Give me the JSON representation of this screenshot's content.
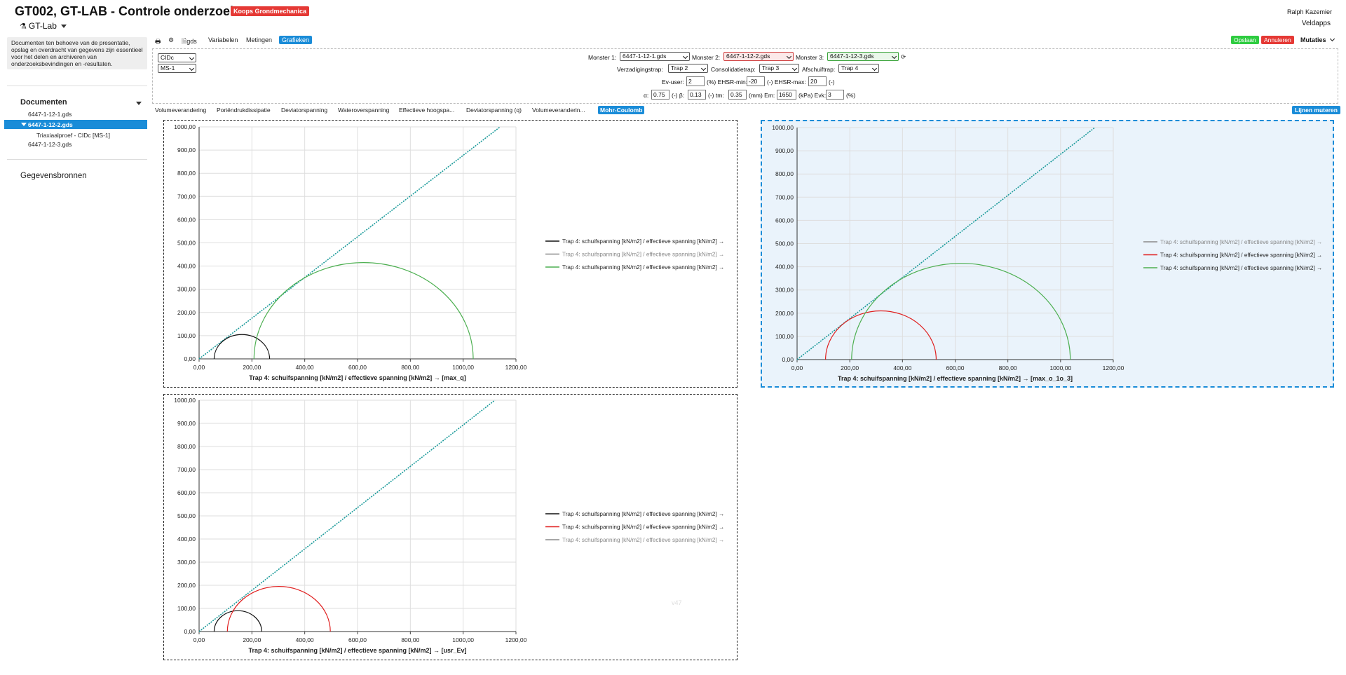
{
  "header": {
    "title": "GT002, GT-LAB - Controle onderzoek",
    "badge": "Koops Grondmechanica",
    "app_name": "GT-Lab",
    "user": "Ralph Kazemier",
    "org": "Veldapps"
  },
  "sidebar": {
    "info": "Documenten ten behoeve van de presentatie, opslag en overdracht van gegevens zijn essentieel voor het delen en archiveren van onderzoeksbevindingen en -resultaten.",
    "documents_heading": "Documenten",
    "items": [
      {
        "label": "6447-1-12-1.gds"
      },
      {
        "label": "6447-1-12-2.gds"
      },
      {
        "label": "Triaxiaalproef - CIDc [MS-1]"
      },
      {
        "label": "6447-1-12-3.gds"
      }
    ],
    "sources_heading": "Gegevensbronnen"
  },
  "toolbar": {
    "gds": "gds",
    "variabelen": "Variabelen",
    "metingen": "Metingen",
    "grafieken": "Grafieken",
    "opslaan": "Opslaan",
    "annuleren": "Annuleren",
    "mutaties": "Mutaties"
  },
  "filters": {
    "type": "CIDc",
    "ms": "MS-1",
    "monster1_label": "Monster 1:",
    "monster1": "6447-1-12-1.gds",
    "monster2_label": "Monster 2:",
    "monster2": "6447-1-12-2.gds",
    "monster3_label": "Monster 3:",
    "monster3": "6447-1-12-3.gds",
    "verz_label": "Verzadigingstrap:",
    "verz": "Trap 2",
    "cons_label": "Consolidatietrap:",
    "cons": "Trap 3",
    "afsch_label": "Afschuiftrap:",
    "afsch": "Trap 4",
    "ev_label": "Ev-user:",
    "ev": "2",
    "ev_unit": "(%) EHSR-min:",
    "ehsr_min": "-20",
    "ehsr_min_unit": "(-) EHSR-max:",
    "ehsr_max": "20",
    "ehsr_max_unit": "(-)",
    "alpha_label": "α:",
    "alpha": "0.75",
    "alpha_unit": "(-) β:",
    "beta": "0.13",
    "beta_unit": "(-) tm:",
    "tm": "0.35",
    "tm_unit": "(mm) Em:",
    "em": "1650",
    "em_unit": "(kPa) Evk:",
    "evk": "3",
    "evk_unit": "(%)"
  },
  "tabs": [
    {
      "label": "Volumeverandering"
    },
    {
      "label": "Poriëndrukdissipatie"
    },
    {
      "label": "Deviatorspanning"
    },
    {
      "label": "Wateroverspanning"
    },
    {
      "label": "Effectieve hoogspa..."
    },
    {
      "label": "Deviatorspanning (q)"
    },
    {
      "label": "Volumeveranderin..."
    },
    {
      "label": "Mohr-Coulomb"
    }
  ],
  "lijnen_muteren": "Lijnen muteren",
  "watermark": "v47",
  "colors": {
    "accent": "#1a8cd8",
    "black": "#111111",
    "gray": "#8a8a8a",
    "red": "#e02020",
    "green": "#4caf50",
    "envelope": "#1a9a9a"
  },
  "chart_data": [
    {
      "type": "line",
      "title": "Trap 4: schuifspanning [kN/m2] / effectieve spanning [kN/m2] → [max_q]",
      "xlim": [
        0,
        1200
      ],
      "ylim": [
        0,
        1000
      ],
      "xticks": [
        "0,00",
        "200,00",
        "400,00",
        "600,00",
        "800,00",
        "1000,00",
        "1200,00"
      ],
      "yticks": [
        "0,00",
        "100,00",
        "200,00",
        "300,00",
        "400,00",
        "500,00",
        "600,00",
        "700,00",
        "800,00",
        "900,00",
        "1000,00"
      ],
      "envelope": {
        "x": [
          0,
          1140
        ],
        "y": [
          0,
          1000
        ]
      },
      "series": [
        {
          "name": "Trap 4: schuifspanning [kN/m2] / effectieve spanning [kN/m2] →",
          "color": "black",
          "center": 162,
          "radius": 105
        },
        {
          "name": "Trap 4: schuifspanning [kN/m2] / effectieve spanning [kN/m2] →",
          "color": "gray",
          "center": null,
          "radius": null
        },
        {
          "name": "Trap 4: schuifspanning [kN/m2] / effectieve spanning [kN/m2] →",
          "color": "green",
          "center": 623,
          "radius": 415
        }
      ],
      "legend_position": "right"
    },
    {
      "type": "line",
      "title": "Trap 4: schuifspanning [kN/m2] / effectieve spanning [kN/m2] → [max_o_1o_3]",
      "xlim": [
        0,
        1200
      ],
      "ylim": [
        0,
        1000
      ],
      "xticks": [
        "0,00",
        "200,00",
        "400,00",
        "600,00",
        "800,00",
        "1000,00",
        "1200,00"
      ],
      "yticks": [
        "0,00",
        "100,00",
        "200,00",
        "300,00",
        "400,00",
        "500,00",
        "600,00",
        "700,00",
        "800,00",
        "900,00",
        "1000,00"
      ],
      "envelope": {
        "x": [
          0,
          1130
        ],
        "y": [
          0,
          1000
        ]
      },
      "series": [
        {
          "name": "Trap 4: schuifspanning [kN/m2] / effectieve spanning [kN/m2] →",
          "color": "gray",
          "center": null,
          "radius": null
        },
        {
          "name": "Trap 4: schuifspanning [kN/m2] / effectieve spanning [kN/m2] →",
          "color": "red",
          "center": 318,
          "radius": 210
        },
        {
          "name": "Trap 4: schuifspanning [kN/m2] / effectieve spanning [kN/m2] →",
          "color": "green",
          "center": 622,
          "radius": 415
        }
      ],
      "legend_position": "right"
    },
    {
      "type": "line",
      "title": "Trap 4: schuifspanning [kN/m2] / effectieve spanning [kN/m2] → [usr_Ev]",
      "xlim": [
        0,
        1200
      ],
      "ylim": [
        0,
        1000
      ],
      "xticks": [
        "0,00",
        "200,00",
        "400,00",
        "600,00",
        "800,00",
        "1000,00",
        "1200,00"
      ],
      "yticks": [
        "0,00",
        "100,00",
        "200,00",
        "300,00",
        "400,00",
        "500,00",
        "600,00",
        "700,00",
        "800,00",
        "900,00",
        "1000,00"
      ],
      "envelope": {
        "x": [
          0,
          1120
        ],
        "y": [
          0,
          1000
        ]
      },
      "series": [
        {
          "name": "Trap 4: schuifspanning [kN/m2] / effectieve spanning [kN/m2] →",
          "color": "black",
          "center": 147,
          "radius": 90
        },
        {
          "name": "Trap 4: schuifspanning [kN/m2] / effectieve spanning [kN/m2] →",
          "color": "red",
          "center": 302,
          "radius": 195
        },
        {
          "name": "Trap 4: schuifspanning [kN/m2] / effectieve spanning [kN/m2] →",
          "color": "gray",
          "center": null,
          "radius": null
        }
      ],
      "legend_position": "right"
    }
  ]
}
